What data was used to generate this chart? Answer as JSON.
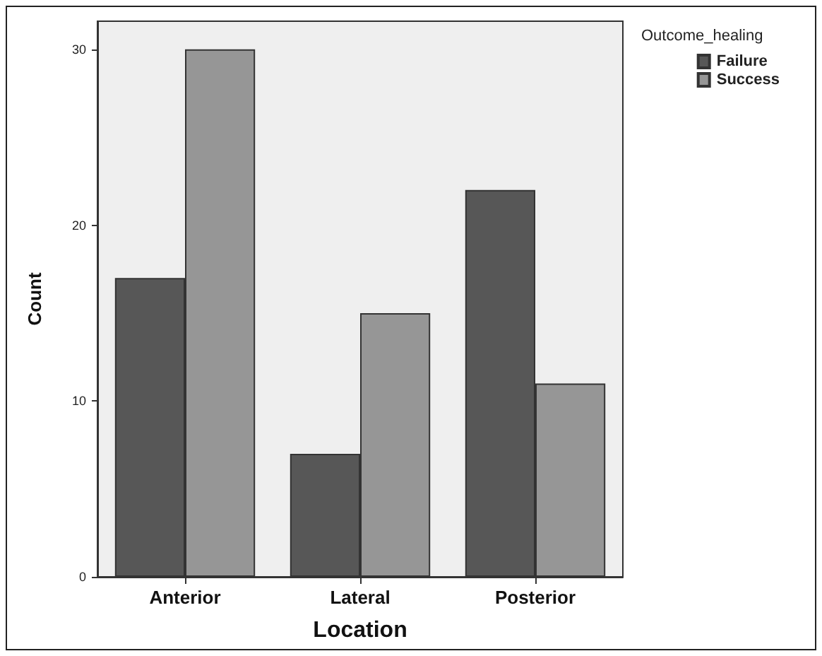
{
  "chart_data": {
    "type": "bar",
    "xlabel": "Location",
    "ylabel": "Count",
    "legend_title": "Outcome_healing",
    "categories": [
      "Anterior",
      "Lateral",
      "Posterior"
    ],
    "series": [
      {
        "name": "Failure",
        "color": "#575757",
        "values": [
          17,
          7,
          22
        ]
      },
      {
        "name": "Success",
        "color": "#969696",
        "values": [
          30,
          15,
          11
        ]
      }
    ],
    "ylim": [
      0,
      31.6
    ],
    "yticks": [
      0,
      10,
      20,
      30
    ],
    "grid": false,
    "legend": "top right"
  }
}
